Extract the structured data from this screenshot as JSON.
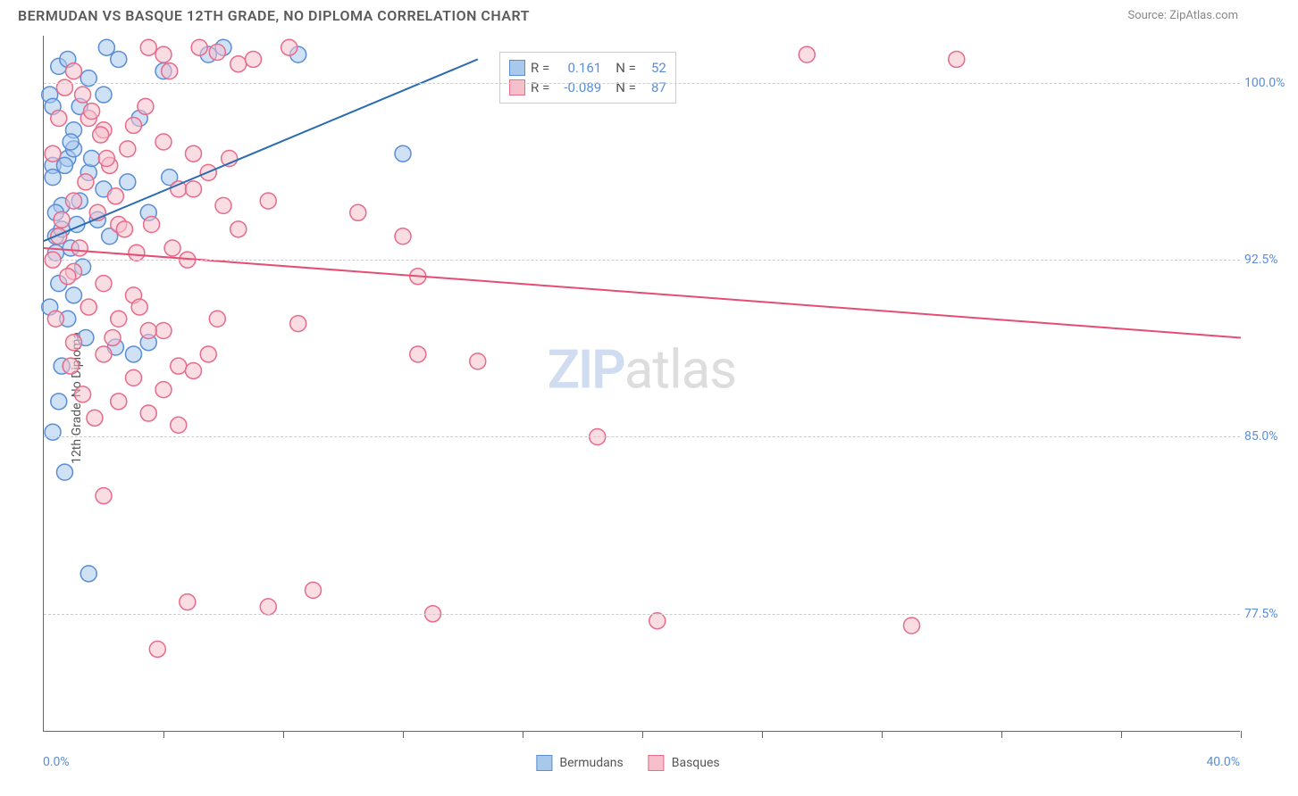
{
  "header": {
    "title": "BERMUDAN VS BASQUE 12TH GRADE, NO DIPLOMA CORRELATION CHART",
    "source": "Source: ZipAtlas.com"
  },
  "watermark": {
    "part1": "ZIP",
    "part2": "atlas"
  },
  "chart": {
    "type": "scatter",
    "ylabel": "12th Grade, No Diploma",
    "xlim": [
      0.0,
      40.0
    ],
    "ylim": [
      72.5,
      102.0
    ],
    "xaxis_min_label": "0.0%",
    "xaxis_max_label": "40.0%",
    "ytick_values": [
      77.5,
      85.0,
      92.5,
      100.0
    ],
    "ytick_labels": [
      "77.5%",
      "85.0%",
      "92.5%",
      "100.0%"
    ],
    "xtick_values": [
      4,
      8,
      12,
      16,
      20,
      24,
      28,
      32,
      36,
      40
    ],
    "background_color": "#ffffff",
    "grid_color": "#cccccc",
    "axis_color": "#666666",
    "marker_radius": 9,
    "marker_stroke_width": 1.5,
    "line_width": 2,
    "series": [
      {
        "name": "Bermudans",
        "color_fill": "#a8c8ec",
        "color_stroke": "#5b8dd6",
        "line_color": "#2b6cb0",
        "r_label": "R =",
        "r_value": "0.161",
        "n_label": "N =",
        "n_value": "52",
        "trend": {
          "x1": 0.0,
          "y1": 93.3,
          "x2": 14.5,
          "y2": 101.0
        },
        "points": [
          [
            2.1,
            101.5
          ],
          [
            0.5,
            100.7
          ],
          [
            1.2,
            99.0
          ],
          [
            0.8,
            96.8
          ],
          [
            1.0,
            97.2
          ],
          [
            0.3,
            96.5
          ],
          [
            1.5,
            96.2
          ],
          [
            2.0,
            95.5
          ],
          [
            0.6,
            94.8
          ],
          [
            1.1,
            94.0
          ],
          [
            0.4,
            93.5
          ],
          [
            0.9,
            93.0
          ],
          [
            1.3,
            92.2
          ],
          [
            0.5,
            91.5
          ],
          [
            1.0,
            91.0
          ],
          [
            0.2,
            90.5
          ],
          [
            0.8,
            90.0
          ],
          [
            1.4,
            89.2
          ],
          [
            3.0,
            88.5
          ],
          [
            3.5,
            89.0
          ],
          [
            0.6,
            88.0
          ],
          [
            0.3,
            85.2
          ],
          [
            0.7,
            83.5
          ],
          [
            1.5,
            79.2
          ],
          [
            4.0,
            100.5
          ],
          [
            2.5,
            101.0
          ],
          [
            3.2,
            98.5
          ],
          [
            2.8,
            95.8
          ],
          [
            3.5,
            94.5
          ],
          [
            4.2,
            96.0
          ],
          [
            5.5,
            101.2
          ],
          [
            6.0,
            101.5
          ],
          [
            8.5,
            101.2
          ],
          [
            12.0,
            97.0
          ],
          [
            0.4,
            92.8
          ],
          [
            1.2,
            95.0
          ],
          [
            0.6,
            93.8
          ],
          [
            1.8,
            94.2
          ],
          [
            2.2,
            93.5
          ],
          [
            0.3,
            96.0
          ],
          [
            0.7,
            96.5
          ],
          [
            1.0,
            98.0
          ],
          [
            1.5,
            100.2
          ],
          [
            0.2,
            99.5
          ],
          [
            0.8,
            101.0
          ],
          [
            0.4,
            94.5
          ],
          [
            1.6,
            96.8
          ],
          [
            0.9,
            97.5
          ],
          [
            2.4,
            88.8
          ],
          [
            0.5,
            86.5
          ],
          [
            0.3,
            99.0
          ],
          [
            2.0,
            99.5
          ]
        ]
      },
      {
        "name": "Basques",
        "color_fill": "#f5c0cc",
        "color_stroke": "#e76b8a",
        "line_color": "#e54d73",
        "r_label": "R =",
        "r_value": "-0.089",
        "n_label": "N =",
        "n_value": "87",
        "trend": {
          "x1": 0.0,
          "y1": 93.0,
          "x2": 40.0,
          "y2": 89.2
        },
        "points": [
          [
            3.5,
            101.5
          ],
          [
            4.0,
            101.2
          ],
          [
            5.2,
            101.5
          ],
          [
            5.8,
            101.3
          ],
          [
            8.2,
            101.5
          ],
          [
            25.5,
            101.2
          ],
          [
            30.5,
            101.0
          ],
          [
            1.5,
            98.5
          ],
          [
            2.0,
            98.0
          ],
          [
            3.0,
            98.2
          ],
          [
            4.0,
            97.5
          ],
          [
            5.0,
            97.0
          ],
          [
            4.5,
            95.5
          ],
          [
            5.5,
            96.2
          ],
          [
            6.0,
            94.8
          ],
          [
            1.0,
            95.0
          ],
          [
            1.8,
            94.5
          ],
          [
            2.5,
            94.0
          ],
          [
            0.5,
            93.5
          ],
          [
            6.5,
            93.8
          ],
          [
            10.5,
            94.5
          ],
          [
            12.0,
            93.5
          ],
          [
            0.3,
            92.5
          ],
          [
            1.0,
            92.0
          ],
          [
            2.0,
            91.5
          ],
          [
            3.0,
            91.0
          ],
          [
            1.5,
            90.5
          ],
          [
            2.5,
            90.0
          ],
          [
            4.0,
            89.5
          ],
          [
            12.5,
            91.8
          ],
          [
            1.0,
            89.0
          ],
          [
            3.5,
            89.5
          ],
          [
            4.5,
            88.0
          ],
          [
            5.5,
            88.5
          ],
          [
            8.5,
            89.8
          ],
          [
            2.0,
            88.5
          ],
          [
            3.0,
            87.5
          ],
          [
            4.0,
            87.0
          ],
          [
            5.0,
            87.8
          ],
          [
            12.5,
            88.5
          ],
          [
            14.5,
            88.2
          ],
          [
            2.5,
            86.5
          ],
          [
            3.5,
            86.0
          ],
          [
            4.5,
            85.5
          ],
          [
            18.5,
            85.0
          ],
          [
            2.0,
            82.5
          ],
          [
            0.8,
            91.8
          ],
          [
            1.2,
            93.0
          ],
          [
            0.6,
            94.2
          ],
          [
            1.4,
            95.8
          ],
          [
            2.2,
            96.5
          ],
          [
            2.8,
            97.2
          ],
          [
            3.4,
            99.0
          ],
          [
            4.2,
            100.5
          ],
          [
            6.5,
            100.8
          ],
          [
            0.4,
            90.0
          ],
          [
            0.9,
            88.0
          ],
          [
            1.3,
            86.8
          ],
          [
            1.7,
            85.8
          ],
          [
            2.3,
            89.2
          ],
          [
            3.2,
            90.5
          ],
          [
            4.8,
            92.5
          ],
          [
            5.8,
            90.0
          ],
          [
            7.0,
            101.0
          ],
          [
            3.8,
            76.0
          ],
          [
            4.8,
            78.0
          ],
          [
            7.5,
            77.8
          ],
          [
            9.0,
            78.5
          ],
          [
            13.0,
            77.5
          ],
          [
            20.5,
            77.2
          ],
          [
            29.0,
            77.0
          ],
          [
            0.3,
            97.0
          ],
          [
            0.5,
            98.5
          ],
          [
            0.7,
            99.8
          ],
          [
            1.0,
            100.5
          ],
          [
            1.3,
            99.5
          ],
          [
            1.6,
            98.8
          ],
          [
            1.9,
            97.8
          ],
          [
            2.1,
            96.8
          ],
          [
            2.4,
            95.2
          ],
          [
            2.7,
            93.8
          ],
          [
            3.1,
            92.8
          ],
          [
            3.6,
            94.0
          ],
          [
            4.3,
            93.0
          ],
          [
            5.0,
            95.5
          ],
          [
            6.2,
            96.8
          ],
          [
            7.5,
            95.0
          ]
        ]
      }
    ]
  },
  "legend": {
    "items": [
      {
        "label": "Bermudans",
        "fill": "#a8c8ec",
        "stroke": "#5b8dd6"
      },
      {
        "label": "Basques",
        "fill": "#f5c0cc",
        "stroke": "#e76b8a"
      }
    ]
  }
}
